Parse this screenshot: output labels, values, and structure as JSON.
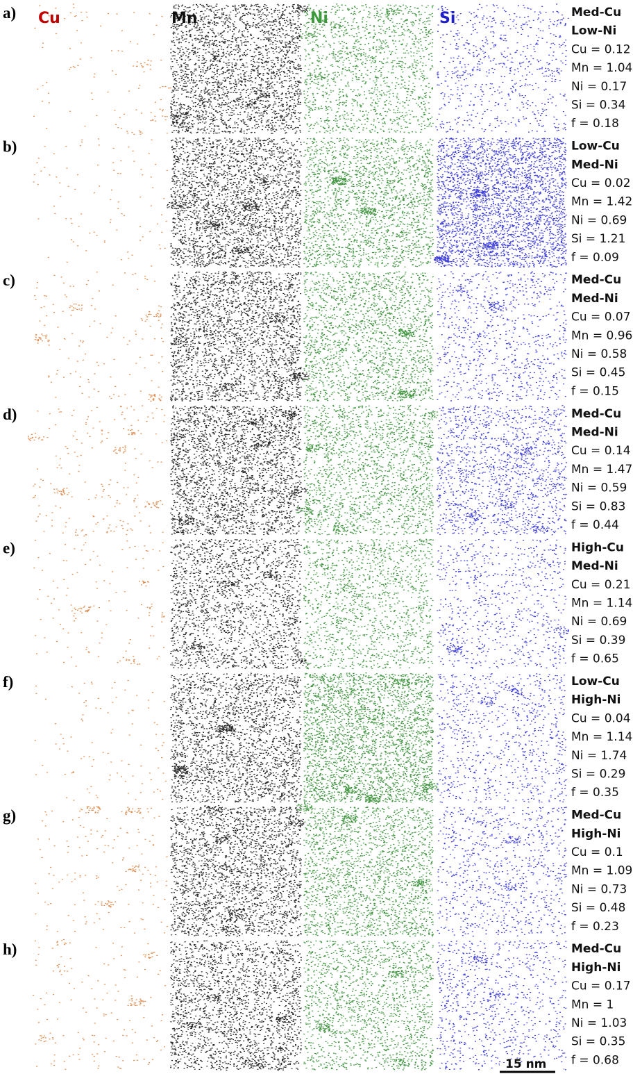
{
  "headers": [
    "Cu",
    "Mn",
    "Ni",
    "Si"
  ],
  "scale_bar": "15 nm",
  "rows": [
    {
      "label": "a)",
      "title": [
        "Med-Cu",
        "Low-Ni"
      ],
      "lines": [
        "Cu = 0.12",
        "Mn = 1.04",
        "Ni = 0.17",
        "Si = 0.34",
        "f = 0.18"
      ]
    },
    {
      "label": "b)",
      "title": [
        "Low-Cu",
        "Med-Ni"
      ],
      "lines": [
        "Cu = 0.02",
        "Mn = 1.42",
        "Ni = 0.69",
        "Si = 1.21",
        "f = 0.09"
      ]
    },
    {
      "label": "c)",
      "title": [
        "Med-Cu",
        "Med-Ni"
      ],
      "lines": [
        "Cu = 0.07",
        "Mn = 0.96",
        "Ni = 0.58",
        "Si = 0.45",
        "f = 0.15"
      ]
    },
    {
      "label": "d)",
      "title": [
        "Med-Cu",
        "Med-Ni"
      ],
      "lines": [
        "Cu = 0.14",
        "Mn = 1.47",
        "Ni = 0.59",
        "Si = 0.83",
        "f = 0.44"
      ]
    },
    {
      "label": "e)",
      "title": [
        "High-Cu",
        "Med-Ni"
      ],
      "lines": [
        "Cu = 0.21",
        "Mn = 1.14",
        "Ni = 0.69",
        "Si = 0.39",
        "f = 0.65"
      ]
    },
    {
      "label": "f)",
      "title": [
        "Low-Cu",
        "High-Ni"
      ],
      "lines": [
        "Cu = 0.04",
        "Mn = 1.14",
        "Ni = 1.74",
        "Si = 0.29",
        "f = 0.35"
      ]
    },
    {
      "label": "g)",
      "title": [
        "Med-Cu",
        "High-Ni"
      ],
      "lines": [
        "Cu = 0.1",
        "Mn = 1.09",
        "Ni = 0.73",
        "Si = 0.48",
        "f = 0.23"
      ]
    },
    {
      "label": "h)",
      "title": [
        "Med-Cu",
        "High-Ni"
      ],
      "lines": [
        "Cu = 0.17",
        "Mn = 1",
        "Ni = 1.03",
        "Si = 0.35",
        "f = 0.68"
      ]
    }
  ]
}
